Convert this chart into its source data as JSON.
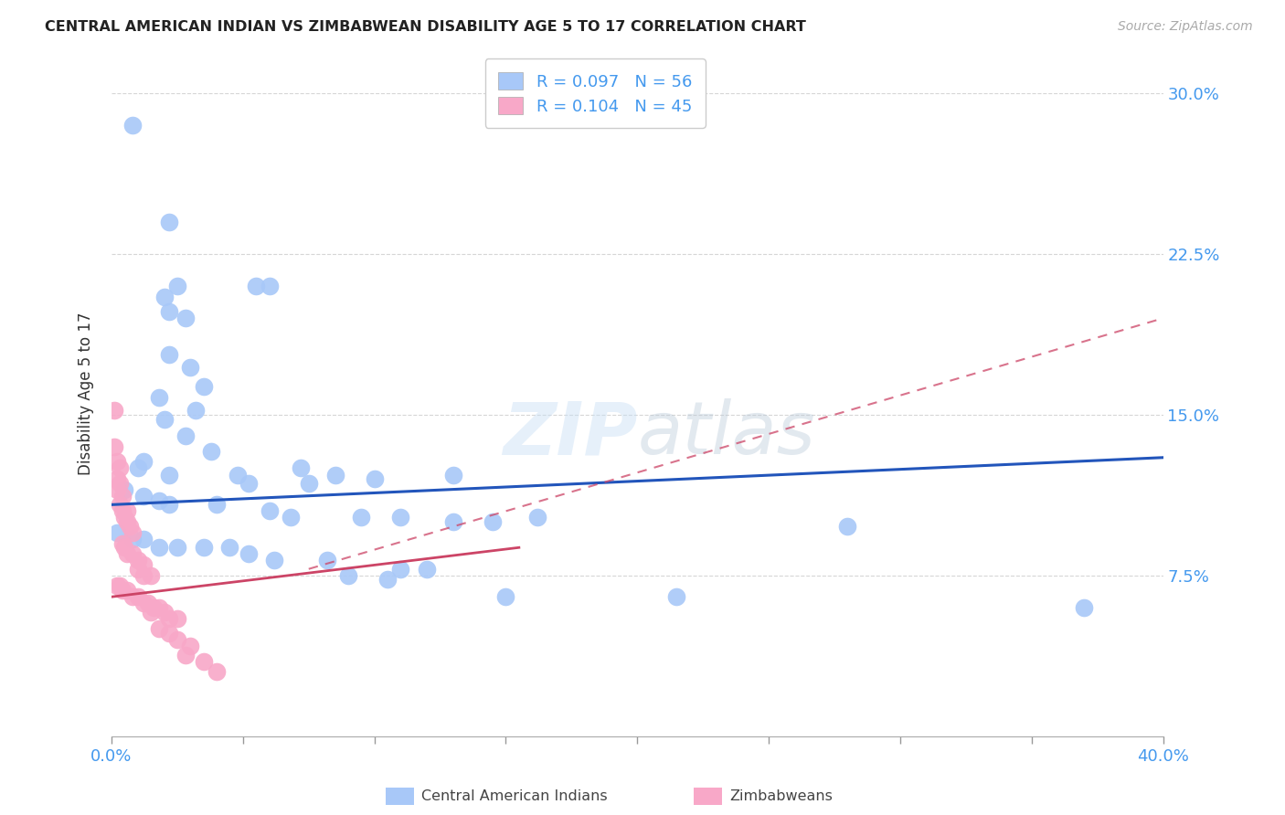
{
  "title": "CENTRAL AMERICAN INDIAN VS ZIMBABWEAN DISABILITY AGE 5 TO 17 CORRELATION CHART",
  "source": "Source: ZipAtlas.com",
  "ylabel": "Disability Age 5 to 17",
  "xmin": 0.0,
  "xmax": 0.4,
  "ymin": 0.0,
  "ymax": 0.32,
  "xticks": [
    0.0,
    0.05,
    0.1,
    0.15,
    0.2,
    0.25,
    0.3,
    0.35,
    0.4
  ],
  "yticks": [
    0.075,
    0.15,
    0.225,
    0.3
  ],
  "ytick_labels": [
    "7.5%",
    "15.0%",
    "22.5%",
    "30.0%"
  ],
  "blue_color": "#a8c8f8",
  "pink_color": "#f8a8c8",
  "blue_line_color": "#2255bb",
  "pink_line_color": "#cc4466",
  "tick_label_color": "#4499ee",
  "watermark": "ZIPatlas",
  "blue_scatter": [
    [
      0.008,
      0.285
    ],
    [
      0.022,
      0.24
    ],
    [
      0.02,
      0.205
    ],
    [
      0.022,
      0.198
    ],
    [
      0.025,
      0.21
    ],
    [
      0.028,
      0.195
    ],
    [
      0.055,
      0.21
    ],
    [
      0.06,
      0.21
    ],
    [
      0.022,
      0.178
    ],
    [
      0.03,
      0.172
    ],
    [
      0.035,
      0.163
    ],
    [
      0.018,
      0.158
    ],
    [
      0.032,
      0.152
    ],
    [
      0.02,
      0.148
    ],
    [
      0.028,
      0.14
    ],
    [
      0.038,
      0.133
    ],
    [
      0.012,
      0.128
    ],
    [
      0.01,
      0.125
    ],
    [
      0.022,
      0.122
    ],
    [
      0.048,
      0.122
    ],
    [
      0.052,
      0.118
    ],
    [
      0.072,
      0.125
    ],
    [
      0.075,
      0.118
    ],
    [
      0.085,
      0.122
    ],
    [
      0.1,
      0.12
    ],
    [
      0.13,
      0.122
    ],
    [
      0.005,
      0.115
    ],
    [
      0.012,
      0.112
    ],
    [
      0.018,
      0.11
    ],
    [
      0.022,
      0.108
    ],
    [
      0.04,
      0.108
    ],
    [
      0.06,
      0.105
    ],
    [
      0.068,
      0.102
    ],
    [
      0.095,
      0.102
    ],
    [
      0.11,
      0.102
    ],
    [
      0.13,
      0.1
    ],
    [
      0.145,
      0.1
    ],
    [
      0.162,
      0.102
    ],
    [
      0.002,
      0.095
    ],
    [
      0.008,
      0.092
    ],
    [
      0.012,
      0.092
    ],
    [
      0.018,
      0.088
    ],
    [
      0.025,
      0.088
    ],
    [
      0.035,
      0.088
    ],
    [
      0.045,
      0.088
    ],
    [
      0.052,
      0.085
    ],
    [
      0.062,
      0.082
    ],
    [
      0.082,
      0.082
    ],
    [
      0.11,
      0.078
    ],
    [
      0.12,
      0.078
    ],
    [
      0.09,
      0.075
    ],
    [
      0.105,
      0.073
    ],
    [
      0.15,
      0.065
    ],
    [
      0.215,
      0.065
    ],
    [
      0.28,
      0.098
    ],
    [
      0.37,
      0.06
    ]
  ],
  "pink_scatter": [
    [
      0.001,
      0.152
    ],
    [
      0.001,
      0.135
    ],
    [
      0.002,
      0.128
    ],
    [
      0.003,
      0.125
    ],
    [
      0.002,
      0.12
    ],
    [
      0.003,
      0.118
    ],
    [
      0.002,
      0.115
    ],
    [
      0.004,
      0.112
    ],
    [
      0.003,
      0.108
    ],
    [
      0.004,
      0.105
    ],
    [
      0.006,
      0.105
    ],
    [
      0.005,
      0.102
    ],
    [
      0.006,
      0.1
    ],
    [
      0.007,
      0.098
    ],
    [
      0.008,
      0.095
    ],
    [
      0.004,
      0.09
    ],
    [
      0.005,
      0.088
    ],
    [
      0.006,
      0.085
    ],
    [
      0.008,
      0.085
    ],
    [
      0.01,
      0.082
    ],
    [
      0.012,
      0.08
    ],
    [
      0.01,
      0.078
    ],
    [
      0.012,
      0.075
    ],
    [
      0.015,
      0.075
    ],
    [
      0.002,
      0.07
    ],
    [
      0.003,
      0.07
    ],
    [
      0.004,
      0.068
    ],
    [
      0.006,
      0.068
    ],
    [
      0.008,
      0.065
    ],
    [
      0.01,
      0.065
    ],
    [
      0.012,
      0.062
    ],
    [
      0.014,
      0.062
    ],
    [
      0.016,
      0.06
    ],
    [
      0.018,
      0.06
    ],
    [
      0.015,
      0.058
    ],
    [
      0.02,
      0.058
    ],
    [
      0.022,
      0.055
    ],
    [
      0.025,
      0.055
    ],
    [
      0.018,
      0.05
    ],
    [
      0.022,
      0.048
    ],
    [
      0.025,
      0.045
    ],
    [
      0.03,
      0.042
    ],
    [
      0.028,
      0.038
    ],
    [
      0.035,
      0.035
    ],
    [
      0.04,
      0.03
    ]
  ],
  "blue_trend": [
    0.0,
    0.108,
    0.4,
    0.13
  ],
  "pink_solid_trend": [
    0.0,
    0.065,
    0.155,
    0.088
  ],
  "pink_dashed_trend": [
    0.075,
    0.078,
    0.4,
    0.195
  ]
}
